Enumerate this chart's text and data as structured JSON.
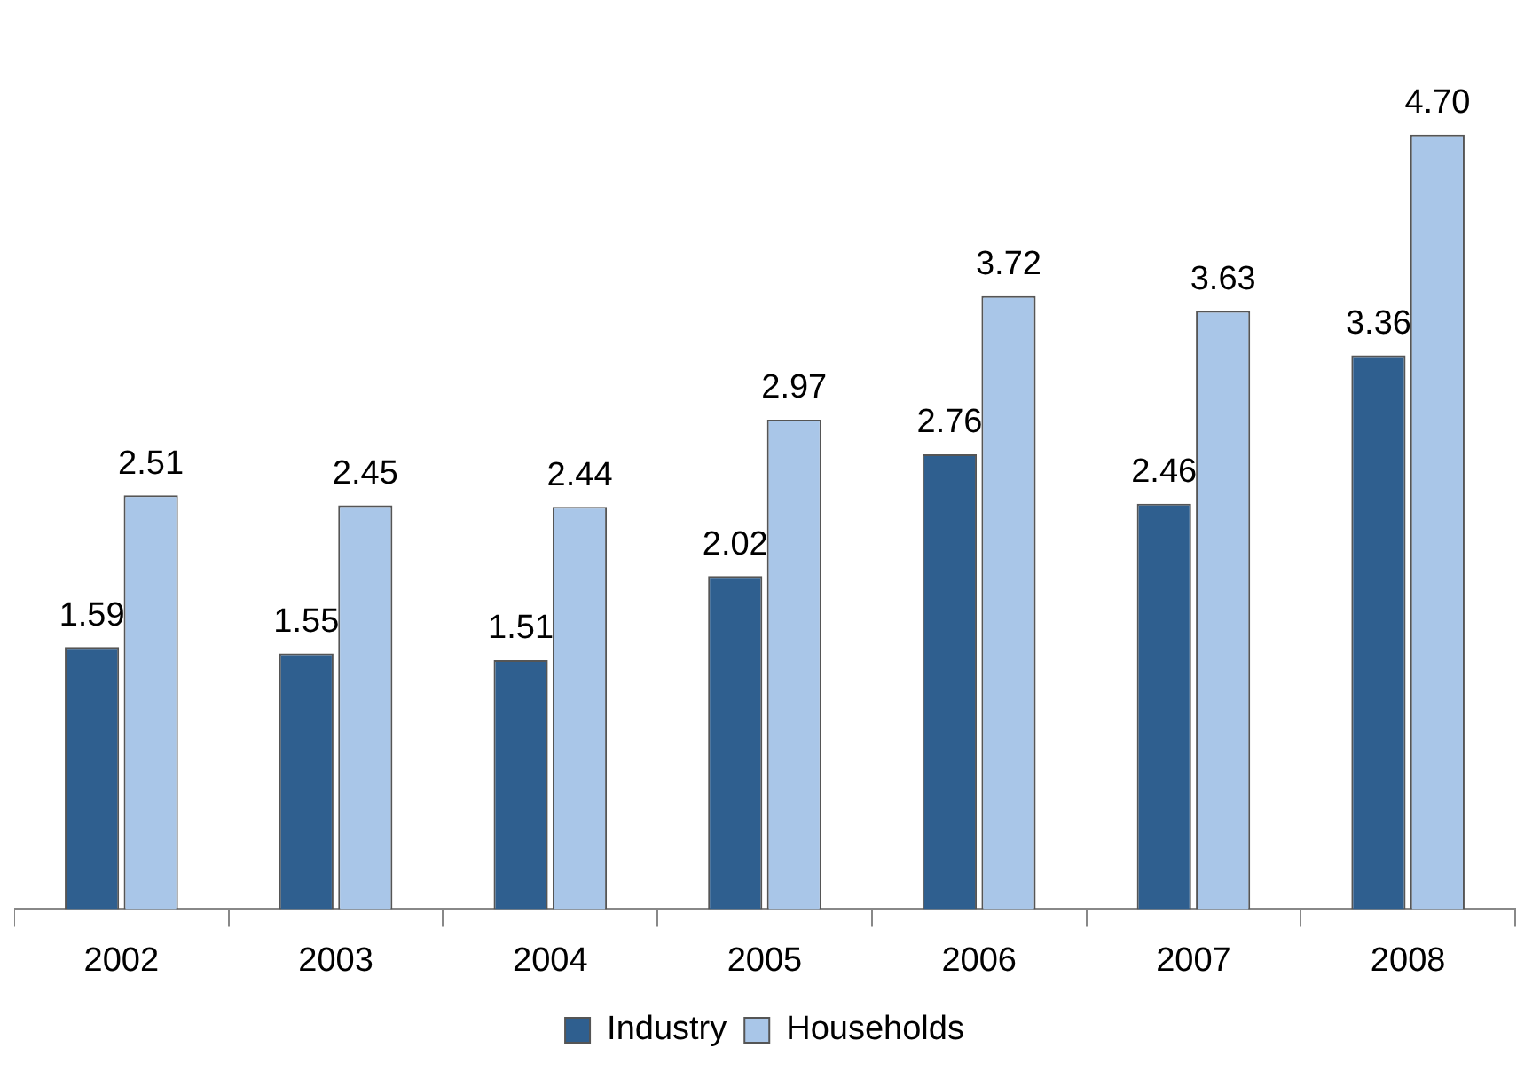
{
  "chart_data": {
    "type": "bar",
    "categories": [
      "2002",
      "2003",
      "2004",
      "2005",
      "2006",
      "2007",
      "2008"
    ],
    "series": [
      {
        "name": "Industry",
        "color": "#2f5f8f",
        "values": [
          1.59,
          1.55,
          1.51,
          2.02,
          2.76,
          2.46,
          3.36
        ],
        "value_labels": [
          "1.59",
          "1.55",
          "1.51",
          "2.02",
          "2.76",
          "2.46",
          "3.36"
        ]
      },
      {
        "name": "Households",
        "color": "#a9c6e8",
        "values": [
          2.51,
          2.45,
          2.44,
          2.97,
          3.72,
          3.63,
          4.7
        ],
        "value_labels": [
          "2.51",
          "2.45",
          "2.44",
          "2.97",
          "3.72",
          "3.63",
          "4.70"
        ]
      }
    ],
    "legend": "bottom",
    "grid": false
  }
}
